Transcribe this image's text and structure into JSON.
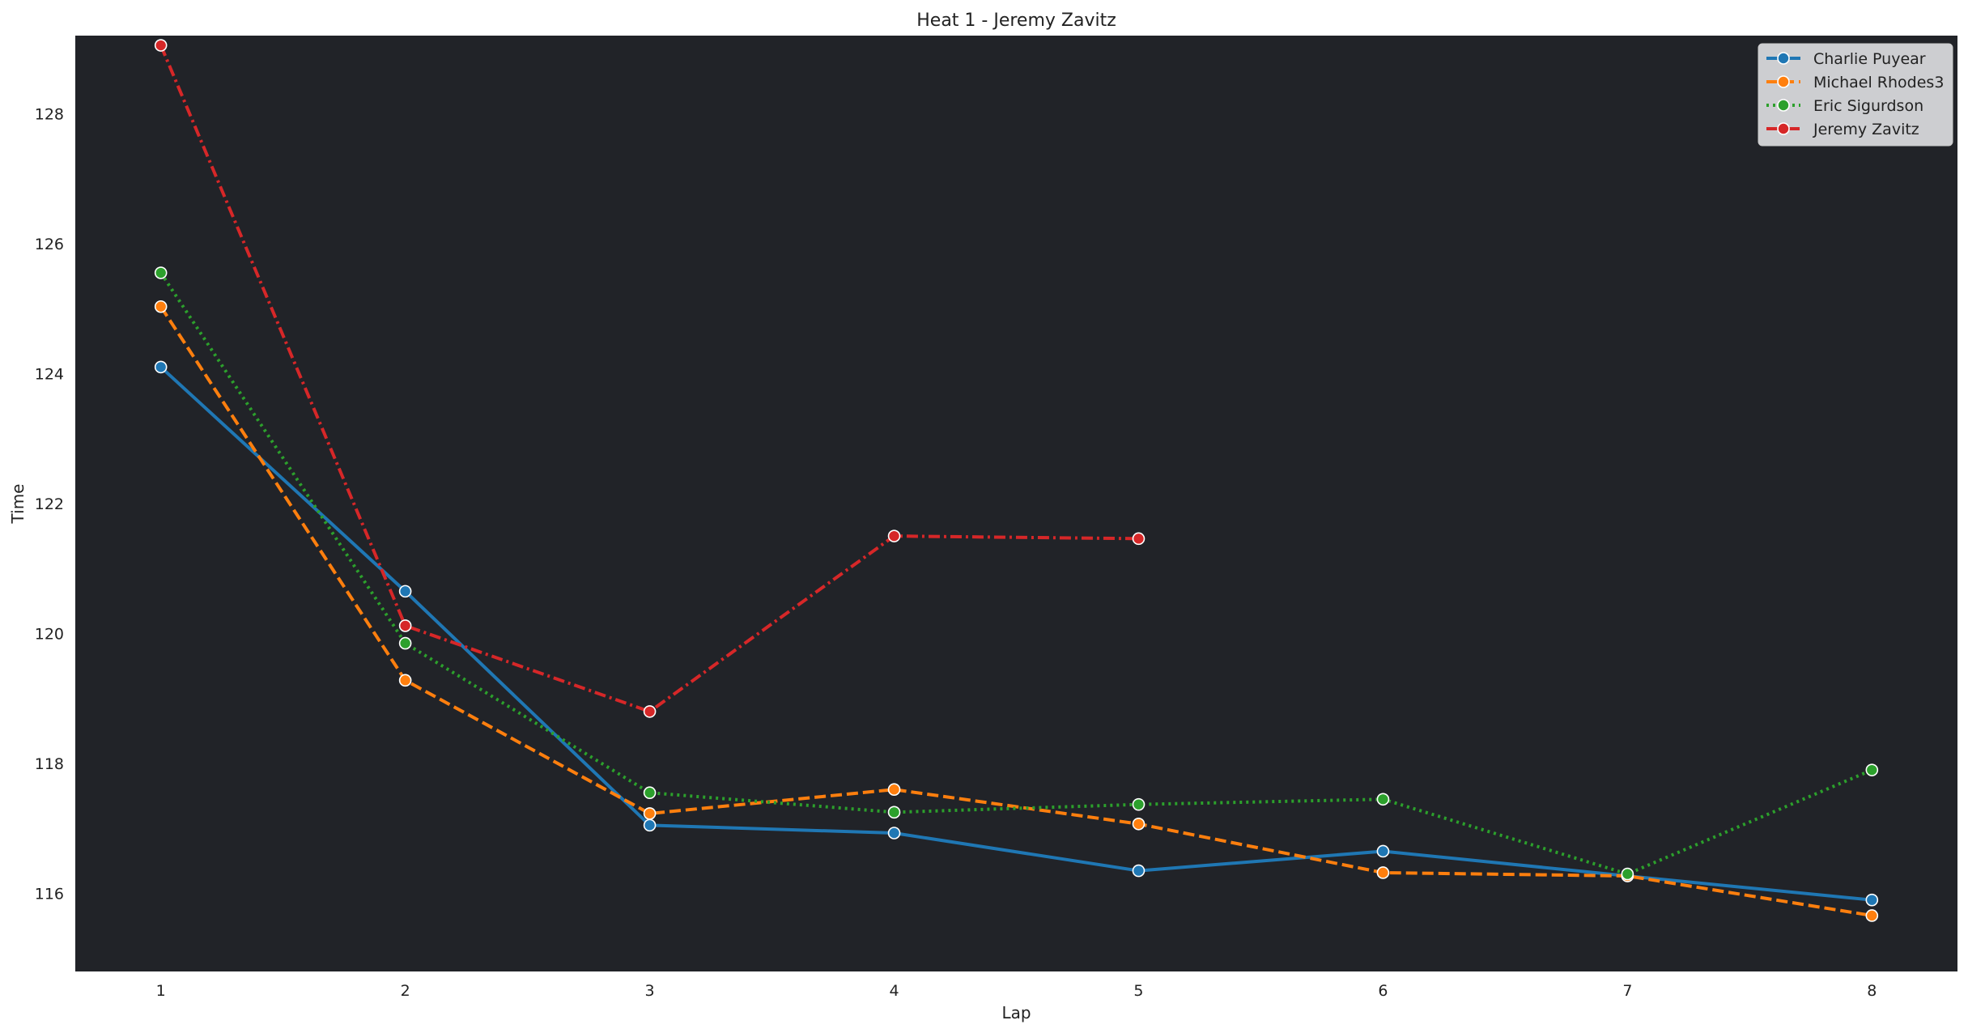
{
  "chart_data": {
    "type": "line",
    "title": "Heat 1 - Jeremy Zavitz",
    "xlabel": "Lap",
    "ylabel": "Time",
    "xlim": [
      0.65,
      8.35
    ],
    "ylim": [
      114.8,
      129.2
    ],
    "xticks": [
      1,
      2,
      3,
      4,
      5,
      6,
      7,
      8
    ],
    "yticks": [
      116,
      118,
      120,
      122,
      124,
      126,
      128
    ],
    "grid": false,
    "legend_position": "top-right",
    "plot_background": "#212328",
    "series": [
      {
        "name": "Charlie Puyear",
        "color": "#1f77b4",
        "dash": "solid",
        "x": [
          1,
          2,
          3,
          4,
          5,
          6,
          7,
          8
        ],
        "y": [
          124.1,
          120.65,
          117.05,
          116.93,
          116.35,
          116.65,
          116.27,
          115.9
        ]
      },
      {
        "name": "Michael Rhodes3",
        "color": "#ff7f0e",
        "dash": "dashed",
        "x": [
          1,
          2,
          3,
          4,
          5,
          6,
          7,
          8
        ],
        "y": [
          125.03,
          119.28,
          117.23,
          117.6,
          117.07,
          116.32,
          116.27,
          115.66
        ]
      },
      {
        "name": "Eric Sigurdson",
        "color": "#2ca02c",
        "dash": "dotted",
        "x": [
          1,
          2,
          3,
          4,
          5,
          6,
          7,
          8
        ],
        "y": [
          125.55,
          119.85,
          117.55,
          117.25,
          117.37,
          117.45,
          116.3,
          117.9
        ]
      },
      {
        "name": "Jeremy Zavitz",
        "color": "#d62728",
        "dash": "dashdot",
        "x": [
          1,
          2,
          3,
          4,
          5
        ],
        "y": [
          129.05,
          120.12,
          118.8,
          121.5,
          121.46
        ]
      }
    ]
  }
}
